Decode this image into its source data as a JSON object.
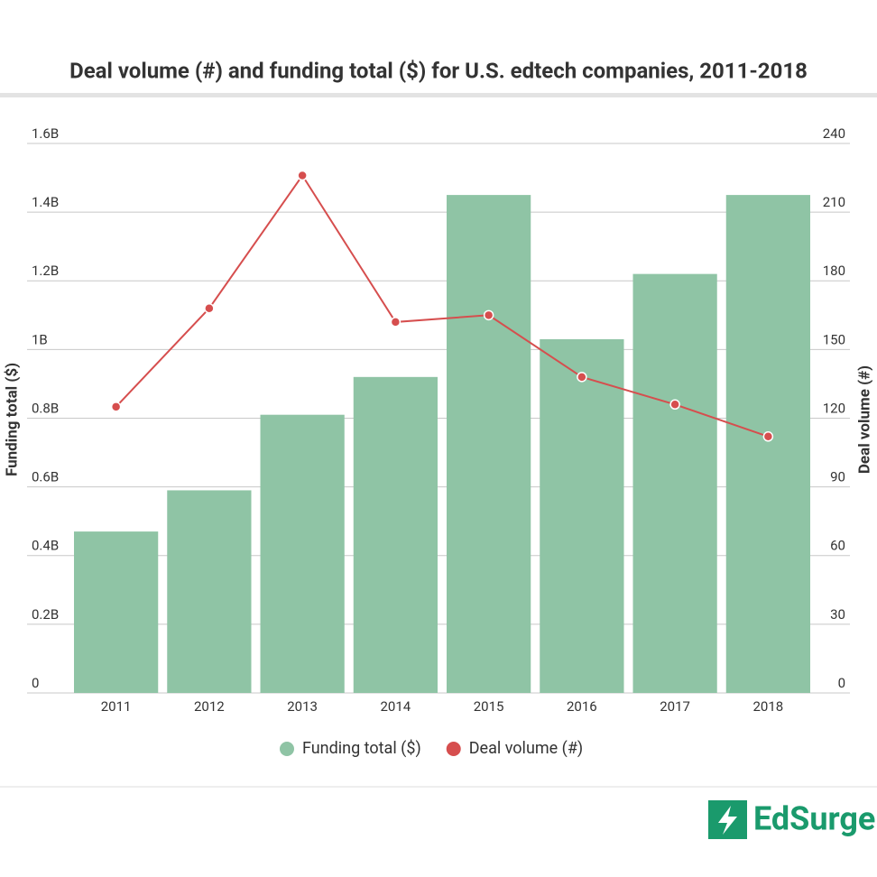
{
  "chart_data": {
    "type": "bar",
    "title": "Deal volume (#) and funding total ($) for U.S. edtech companies, 2011-2018",
    "y_label": "Funding total ($)",
    "y2_label": "Deal volume (#)",
    "categories": [
      "2011",
      "2012",
      "2013",
      "2014",
      "2015",
      "2016",
      "2017",
      "2018"
    ],
    "series": [
      {
        "name": "Funding total ($)",
        "color": "#8fc4a5",
        "values": [
          470000000,
          590000000,
          810000000,
          920000000,
          1450000000,
          1030000000,
          1220000000,
          1450000000
        ]
      },
      {
        "name": "Deal volume (#)",
        "color": "#d64e4e",
        "axis": "y2",
        "values": [
          125,
          168,
          226,
          162,
          165,
          138,
          126,
          112
        ]
      }
    ],
    "ylim": [
      0,
      1600000000
    ],
    "yticks": [
      0,
      {
        "value": 200000000,
        "label": "0.2B"
      },
      {
        "value": 400000000,
        "label": "0.4B"
      },
      {
        "value": 600000000,
        "label": "0.6B"
      },
      {
        "value": 800000000,
        "label": "0.8B"
      },
      {
        "value": 1000000000,
        "label": "1B"
      },
      {
        "value": 1200000000,
        "label": "1.2B"
      },
      {
        "value": 1400000000,
        "label": "1.4B"
      },
      {
        "value": 1600000000,
        "label": "1.6B"
      }
    ],
    "y2lim": [
      0,
      240
    ],
    "y2ticks": [
      0,
      30,
      60,
      90,
      120,
      150,
      180,
      210,
      240
    ],
    "grid": true,
    "legend": "bottom"
  },
  "logo": "EdSurge"
}
